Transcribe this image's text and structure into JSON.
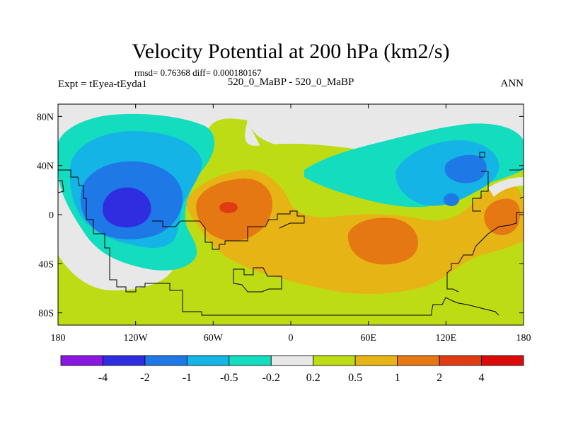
{
  "chart_data": {
    "type": "heatmap",
    "title": "Velocity Potential at 200 hPa (km2/s)",
    "stats": "rmsd= 0.76368  diff= 0.000180167",
    "left_label": "Expt = tEyea-tEyda1",
    "center_label": "520_0_MaBP - 520_0_MaBP",
    "right_label": "ANN",
    "x_axis": {
      "ticks": [
        "180",
        "120W",
        "60W",
        "0",
        "60E",
        "120E",
        "180"
      ],
      "range": [
        -180,
        180
      ]
    },
    "y_axis": {
      "ticks": [
        "80N",
        "40N",
        "0",
        "40S",
        "80S"
      ],
      "range": [
        -90,
        90
      ]
    },
    "colorbar": {
      "levels": [
        "-4",
        "-2",
        "-1",
        "-0.5",
        "-0.2",
        "0.2",
        "0.5",
        "1",
        "2",
        "4"
      ],
      "colors": [
        "#8a18e0",
        "#2e2ee0",
        "#1e78e6",
        "#14b4e6",
        "#14dcbe",
        "#e8e8e8",
        "#bedc14",
        "#e6b414",
        "#e67814",
        "#e03c14",
        "#dc0a0a"
      ]
    },
    "field_features": [
      {
        "label": "negative",
        "lon": -140,
        "lat": 0,
        "value": -3.0
      },
      {
        "label": "negative",
        "lon": -95,
        "lat": 28,
        "value": -0.8
      },
      {
        "label": "negative",
        "lon": 130,
        "lat": 25,
        "value": -1.5
      },
      {
        "label": "positive",
        "lon": -45,
        "lat": 0,
        "value": 2.5
      },
      {
        "label": "positive",
        "lon": 55,
        "lat": -20,
        "value": 1.5
      },
      {
        "label": "positive",
        "lon": 155,
        "lat": -5,
        "value": 1.5
      },
      {
        "label": "neutral",
        "lon": -15,
        "lat": 85,
        "value": 0.0
      }
    ]
  }
}
